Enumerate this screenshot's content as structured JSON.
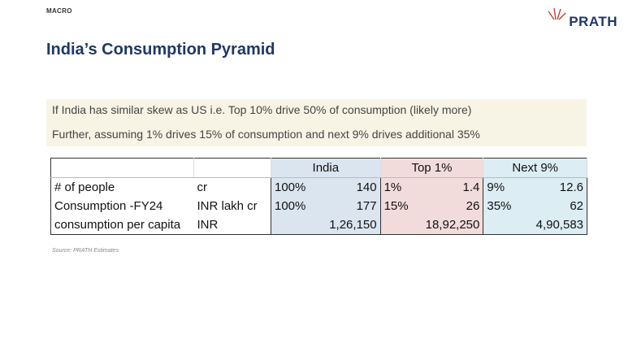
{
  "header": {
    "section": "MACRO",
    "logo": "PRATH"
  },
  "title": "India’s Consumption Pyramid",
  "notes": [
    "If India has similar skew as US i.e. Top 10% drive 50% of consumption (likely more)",
    "Further, assuming 1% drives 15% of consumption and next 9% drives additional 35%"
  ],
  "table": {
    "groups": [
      "India",
      "Top 1%",
      "Next 9%"
    ],
    "rows": [
      [
        "# of people",
        "cr",
        "100%",
        "140",
        "1%",
        "1.4",
        "9%",
        "12.6"
      ],
      [
        "Consumption -FY24",
        "INR lakh cr",
        "100%",
        "177",
        "15%",
        "26",
        "35%",
        "62"
      ],
      [
        "consumption per capita",
        "INR",
        "1,26,150",
        "18,92,250",
        "4,90,583"
      ]
    ]
  },
  "source": "Source: PRATH Estimates"
}
